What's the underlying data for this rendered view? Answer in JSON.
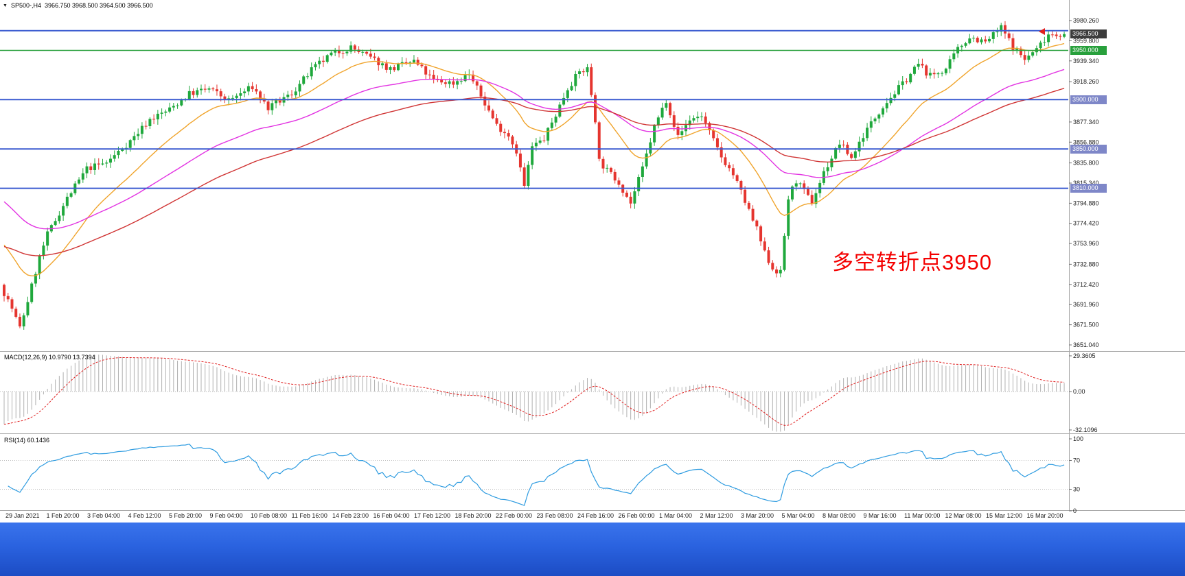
{
  "window": {
    "symbol_period": "SP500-,H4",
    "ohlc": "3966.750 3968.500 3964.500 3966.500"
  },
  "annotation": {
    "text": "多空转折点3950",
    "color": "#f40000"
  },
  "indicators": {
    "macd": {
      "label": "MACD(12,26,9) 10.9790 13.7394",
      "axis": [
        "29.3605",
        "0.00",
        "-32.1096"
      ]
    },
    "rsi": {
      "label": "RSI(14) 60.1436",
      "axis": [
        "100",
        "70",
        "30",
        "0"
      ]
    }
  },
  "price_axis": {
    "ticks": [
      "3980.260",
      "3959.800",
      "3939.340",
      "3918.260",
      "3877.340",
      "3856.880",
      "3835.800",
      "3815.340",
      "3794.880",
      "3774.420",
      "3753.960",
      "3732.880",
      "3712.420",
      "3691.960",
      "3671.500",
      "3651.040"
    ],
    "current_price": {
      "value": "3966.500",
      "bg": "#3c3c3c"
    },
    "level_tags": [
      {
        "value": "3950.000",
        "bg": "#28a03c"
      },
      {
        "value": "3900.000",
        "bg": "#7e87c8"
      },
      {
        "value": "3850.000",
        "bg": "#7e87c8"
      },
      {
        "value": "3810.000",
        "bg": "#7e87c8"
      }
    ]
  },
  "time_axis": [
    "29 Jan 2021",
    "1 Feb 20:00",
    "3 Feb 04:00",
    "4 Feb 12:00",
    "5 Feb 20:00",
    "9 Feb 04:00",
    "10 Feb 08:00",
    "11 Feb 16:00",
    "14 Feb 23:00",
    "16 Feb 04:00",
    "17 Feb 12:00",
    "18 Feb 20:00",
    "22 Feb 00:00",
    "23 Feb 08:00",
    "24 Feb 16:00",
    "26 Feb 00:00",
    "1 Mar 04:00",
    "2 Mar 12:00",
    "3 Mar 20:00",
    "5 Mar 04:00",
    "8 Mar 08:00",
    "9 Mar 16:00",
    "11 Mar 00:00",
    "12 Mar 08:00",
    "15 Mar 12:00",
    "16 Mar 20:00"
  ],
  "chart_data": {
    "type": "candlestick",
    "symbol": "SP500-",
    "timeframe": "H4",
    "open": 3966.75,
    "high": 3968.5,
    "low": 3964.5,
    "close": 3966.5,
    "price_range": [
      3651.04,
      3980.26
    ],
    "candle_count": 270,
    "up_color": "#1fa83c",
    "down_color": "#e5352f",
    "price_path": [
      [
        0,
        3712
      ],
      [
        3,
        3688
      ],
      [
        5,
        3668
      ],
      [
        7,
        3696
      ],
      [
        10,
        3740
      ],
      [
        12,
        3763
      ],
      [
        17,
        3800
      ],
      [
        22,
        3830
      ],
      [
        27,
        3836
      ],
      [
        33,
        3858
      ],
      [
        38,
        3880
      ],
      [
        43,
        3890
      ],
      [
        48,
        3906
      ],
      [
        53,
        3911
      ],
      [
        58,
        3899
      ],
      [
        64,
        3913
      ],
      [
        68,
        3891
      ],
      [
        74,
        3906
      ],
      [
        79,
        3930
      ],
      [
        84,
        3946
      ],
      [
        89,
        3953
      ],
      [
        95,
        3940
      ],
      [
        99,
        3931
      ],
      [
        105,
        3939
      ],
      [
        110,
        3919
      ],
      [
        115,
        3917
      ],
      [
        119,
        3926
      ],
      [
        123,
        3896
      ],
      [
        126,
        3874
      ],
      [
        129,
        3864
      ],
      [
        131,
        3848
      ],
      [
        133,
        3812
      ],
      [
        135,
        3852
      ],
      [
        138,
        3860
      ],
      [
        141,
        3885
      ],
      [
        144,
        3912
      ],
      [
        147,
        3928
      ],
      [
        149,
        3931
      ],
      [
        151,
        3880
      ],
      [
        152,
        3838
      ],
      [
        154,
        3828
      ],
      [
        157,
        3816
      ],
      [
        160,
        3795
      ],
      [
        163,
        3830
      ],
      [
        166,
        3872
      ],
      [
        169,
        3900
      ],
      [
        172,
        3862
      ],
      [
        175,
        3880
      ],
      [
        178,
        3884
      ],
      [
        181,
        3858
      ],
      [
        183,
        3842
      ],
      [
        186,
        3824
      ],
      [
        188,
        3806
      ],
      [
        192,
        3768
      ],
      [
        194,
        3744
      ],
      [
        196,
        3729
      ],
      [
        198,
        3724
      ],
      [
        200,
        3800
      ],
      [
        202,
        3818
      ],
      [
        204,
        3806
      ],
      [
        206,
        3796
      ],
      [
        209,
        3826
      ],
      [
        213,
        3856
      ],
      [
        216,
        3841
      ],
      [
        219,
        3864
      ],
      [
        224,
        3894
      ],
      [
        229,
        3916
      ],
      [
        233,
        3936
      ],
      [
        236,
        3924
      ],
      [
        240,
        3931
      ],
      [
        243,
        3951
      ],
      [
        246,
        3964
      ],
      [
        250,
        3958
      ],
      [
        254,
        3973
      ],
      [
        257,
        3954
      ],
      [
        260,
        3941
      ],
      [
        263,
        3951
      ],
      [
        266,
        3967
      ],
      [
        269,
        3966.5
      ]
    ],
    "horizontal_lines": [
      {
        "price": 3970,
        "color": "#3b5bd0",
        "width": 2,
        "label": null
      },
      {
        "price": 3950,
        "color": "#28a03c",
        "width": 1.6,
        "label": "3950.000"
      },
      {
        "price": 3900,
        "color": "#3b5bd0",
        "width": 2,
        "label": "3900.000"
      },
      {
        "price": 3850,
        "color": "#3b5bd0",
        "width": 2,
        "label": "3850.000"
      },
      {
        "price": 3810,
        "color": "#3b5bd0",
        "width": 2,
        "label": "3810.000"
      }
    ],
    "moving_averages": [
      {
        "name": "fast-ma",
        "color": "#f0a42c",
        "period": 20,
        "seed": 3758
      },
      {
        "name": "mid-ma",
        "color": "#e233e2",
        "period": 55,
        "seed": 3800
      },
      {
        "name": "slow-ma",
        "color": "#d03434",
        "period": 90,
        "seed": 3752
      }
    ],
    "macd": {
      "fast": 12,
      "slow": 26,
      "signal_period": 9,
      "value": 10.979,
      "signal": 13.7394,
      "axis_max": 29.3605,
      "axis_min": -32.1096,
      "histogram_color": "#b0b0b0",
      "signal_color": "#e02020"
    },
    "rsi": {
      "period": 14,
      "value": 60.1436,
      "levels": [
        70,
        30
      ],
      "color": "#2d9be0",
      "range": [
        0,
        100
      ]
    }
  }
}
